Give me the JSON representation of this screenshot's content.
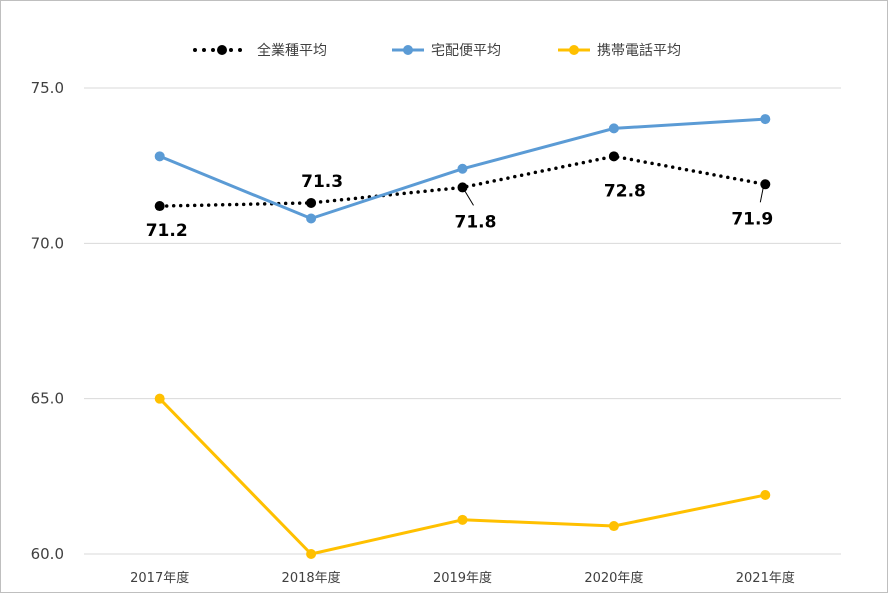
{
  "chart_data": {
    "type": "line",
    "categories": [
      "2017年度",
      "2018年度",
      "2019年度",
      "2020年度",
      "2021年度"
    ],
    "ylim": [
      60.0,
      75.0
    ],
    "yticks": [
      60.0,
      65.0,
      70.0,
      75.0
    ],
    "grid": true,
    "legend_position": "top",
    "series": [
      {
        "name": "全業種平均",
        "values": [
          71.2,
          71.3,
          71.8,
          72.8,
          71.9
        ],
        "color": "#000000",
        "style": "dotted",
        "data_labels": [
          "71.2",
          "71.3",
          "71.8",
          "72.8",
          "71.9"
        ]
      },
      {
        "name": "宅配便平均",
        "values": [
          72.8,
          70.8,
          72.4,
          73.7,
          74.0
        ],
        "color": "#5b9bd5",
        "style": "solid"
      },
      {
        "name": "携帯電話平均",
        "values": [
          65.0,
          60.0,
          61.1,
          60.9,
          61.9
        ],
        "color": "#ffc000",
        "style": "solid"
      }
    ]
  }
}
